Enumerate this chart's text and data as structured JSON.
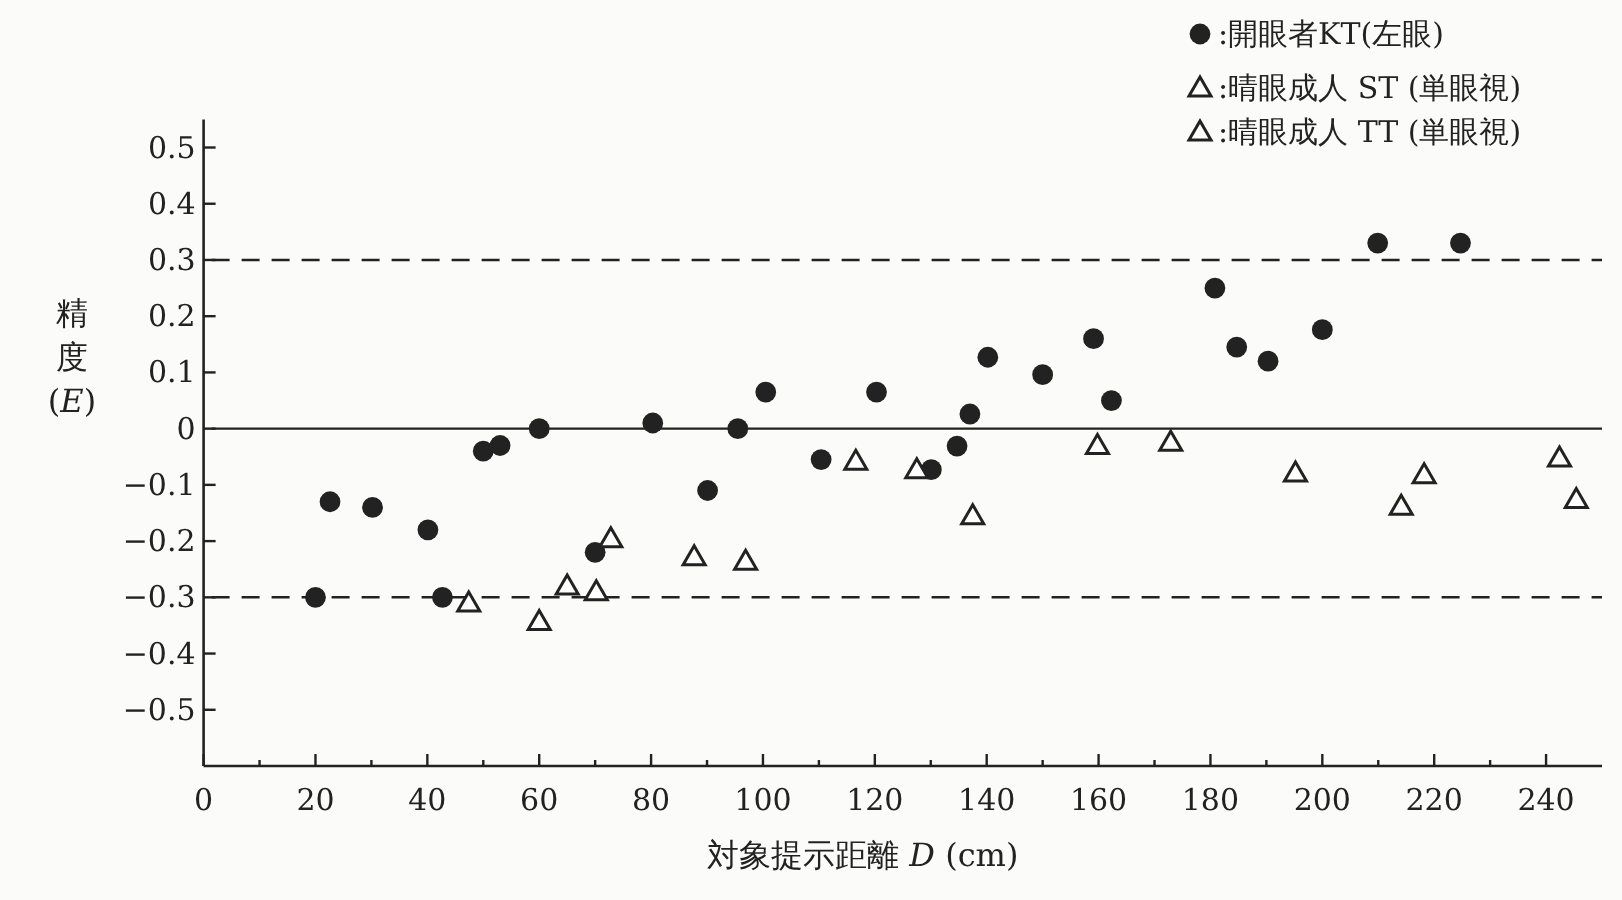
{
  "chart_data": {
    "type": "scatter",
    "xlabel": "対象提示距離 *D* (cm)",
    "ylabel": "精度 (*E*)",
    "xlim": [
      0,
      250
    ],
    "ylim": [
      -0.6,
      0.55
    ],
    "xticks": [
      0,
      {
        "value": 10,
        "label": null
      },
      20,
      {
        "value": 30,
        "label": null
      },
      40,
      {
        "value": 50,
        "label": null
      },
      60,
      {
        "value": 70,
        "label": null
      },
      80,
      {
        "value": 90,
        "label": null
      },
      100,
      {
        "value": 110,
        "label": null
      },
      120,
      {
        "value": 130,
        "label": null
      },
      140,
      {
        "value": 150,
        "label": null
      },
      160,
      {
        "value": 170,
        "label": null
      },
      180,
      {
        "value": 190,
        "label": null
      },
      200,
      {
        "value": 210,
        "label": null
      },
      220,
      {
        "value": 230,
        "label": null
      },
      240
    ],
    "yticks": [
      {
        "value": -0.5,
        "label": "−0.5"
      },
      {
        "value": -0.4,
        "label": "−0.4"
      },
      {
        "value": -0.3,
        "label": "−0.3"
      },
      {
        "value": -0.2,
        "label": "−0.2"
      },
      {
        "value": -0.1,
        "label": "−0.1"
      },
      0,
      0.1,
      0.2,
      0.3,
      0.4,
      0.5
    ],
    "grid": false,
    "legend": "top right",
    "ref_lines": [
      {
        "axis": "y",
        "value": 0.3,
        "color": "#222222",
        "line_style": "dashed"
      },
      {
        "axis": "y",
        "value": 0,
        "color": "#222222",
        "line_style": "solid"
      },
      {
        "axis": "y",
        "value": -0.3,
        "color": "#222222",
        "line_style": "dashed"
      }
    ],
    "series": [
      {
        "name": ":開眼者KT(左眼)",
        "color": "#222222",
        "marker": "circle",
        "x": [
          20,
          22.6,
          30.2,
          40.1,
          42.7,
          50,
          53,
          60,
          70,
          80.3,
          90.1,
          95.5,
          100.5,
          110.4,
          120.3,
          130.1,
          134.7,
          137,
          140.2,
          150,
          159.1,
          162.3,
          180.8,
          184.7,
          190.3,
          200,
          209.9,
          224.7
        ],
        "values": [
          -0.3,
          -0.13,
          -0.14,
          -0.18,
          -0.3,
          -0.04,
          -0.03,
          0,
          -0.22,
          0.01,
          -0.11,
          0,
          0.065,
          -0.055,
          0.065,
          -0.073,
          -0.031,
          0.026,
          0.127,
          0.096,
          0.16,
          0.05,
          0.25,
          0.145,
          0.12,
          0.176,
          0.33,
          0.33
        ]
      },
      {
        "name": ":晴眼成人 ST (単眼視)",
        "color": "#222222",
        "marker": "triangle",
        "x": [
          47.4,
          60,
          70.2,
          87.7,
          116.6,
          127.5,
          137.5,
          159.8,
          172.9,
          195.2,
          242.4
        ],
        "values": [
          -0.31,
          -0.343,
          -0.29,
          -0.228,
          -0.058,
          -0.073,
          -0.155,
          -0.03,
          -0.024,
          -0.079,
          -0.052
        ]
      },
      {
        "name": ":晴眼成人 TT (単眼視)",
        "color": "#222222",
        "marker": "triangle",
        "x": [
          65,
          72.8,
          96.9,
          214.1,
          218.2,
          245.4
        ],
        "values": [
          -0.28,
          -0.196,
          -0.236,
          -0.138,
          -0.082,
          -0.126
        ]
      }
    ]
  }
}
